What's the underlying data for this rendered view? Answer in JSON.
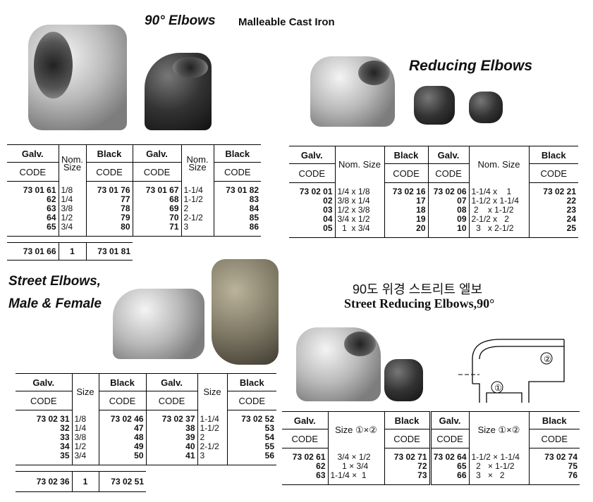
{
  "section1": {
    "title": "90° Elbows",
    "subtitle": "Malleable Cast Iron",
    "table": {
      "headers": [
        "Galv.",
        "Nom. Size",
        "Black",
        "Galv.",
        "Nom. Size",
        "Black"
      ],
      "subheaders": [
        "CODE",
        "",
        "CODE",
        "CODE",
        "",
        "CODE"
      ],
      "rows": [
        [
          "73 01 61",
          "1/8",
          "73 01 76",
          "73 01 67",
          "1-1/4",
          "73 01 82"
        ],
        [
          "62",
          "1/4",
          "77",
          "68",
          "1-1/2",
          "83"
        ],
        [
          "63",
          "3/8",
          "78",
          "69",
          "2",
          "84"
        ],
        [
          "64",
          "1/2",
          "79",
          "70",
          "2-1/2",
          "85"
        ],
        [
          "65",
          "3/4",
          "80",
          "71",
          "3",
          "86"
        ]
      ],
      "footer": [
        "73 01 66",
        "1",
        "73 01 81"
      ]
    }
  },
  "section2": {
    "title": "Reducing Elbows",
    "table": {
      "headers": [
        "Galv.",
        "Nom. Size",
        "Black",
        "Galv.",
        "Nom. Size",
        "Black"
      ],
      "subheaders": [
        "CODE",
        "",
        "CODE",
        "CODE",
        "",
        "CODE"
      ],
      "rows": [
        [
          "73 02 01",
          "1/4 x 1/8",
          "73 02 16",
          "73 02 06",
          "1-1/4 x    1",
          "73 02 21"
        ],
        [
          "02",
          "3/8 x 1/4",
          "17",
          "07",
          "1-1/2 x 1-1/4",
          "22"
        ],
        [
          "03",
          "1/2 x 3/8",
          "18",
          "08",
          " 2    x 1-1/2",
          "23"
        ],
        [
          "04",
          "3/4 x 1/2",
          "19",
          "09",
          "2-1/2 x   2",
          "24"
        ],
        [
          "05",
          "  1  x 3/4",
          "20",
          "10",
          "  3   x 2-1/2",
          "25"
        ]
      ]
    }
  },
  "section3": {
    "title_line1": "Street Elbows,",
    "title_line2": "Male & Female",
    "table": {
      "headers": [
        "Galv.",
        "Size",
        "Black",
        "Galv.",
        "Size",
        "Black"
      ],
      "subheaders": [
        "CODE",
        "",
        "CODE",
        "CODE",
        "",
        "CODE"
      ],
      "rows": [
        [
          "73 02 31",
          "1/8",
          "73 02 46",
          "73 02 37",
          "1-1/4",
          "73 02 52"
        ],
        [
          "32",
          "1/4",
          "47",
          "38",
          "1-1/2",
          "53"
        ],
        [
          "33",
          "3/8",
          "48",
          "39",
          "2",
          "54"
        ],
        [
          "34",
          "1/2",
          "49",
          "40",
          "2-1/2",
          "55"
        ],
        [
          "35",
          "3/4",
          "50",
          "41",
          "3",
          "56"
        ]
      ],
      "footer": [
        "73 02 36",
        "1",
        "73 02 51"
      ]
    }
  },
  "section4": {
    "title_korean": "90도 위경 스트리트 엘보",
    "title": "Street Reducing Elbows,90°",
    "diagram_labels": [
      "①",
      "②"
    ],
    "table": {
      "headers": [
        "Galv.",
        "Size ①×②",
        "Black",
        "Galv.",
        "Size ①×②",
        "Black"
      ],
      "subheaders": [
        "CODE",
        "",
        "CODE",
        "CODE",
        "",
        "CODE"
      ],
      "rows": [
        [
          "73 02 61",
          "   3/4 × 1/2",
          "73 02 71",
          "73 02 64",
          "1-1/2 × 1-1/4",
          "73 02 74"
        ],
        [
          "62",
          "     1 × 3/4",
          "72",
          "65",
          "  2   × 1-1/2",
          "75"
        ],
        [
          "63",
          "1-1/4 ×  1",
          "73",
          "66",
          "  3   ×   2",
          "76"
        ]
      ]
    }
  }
}
